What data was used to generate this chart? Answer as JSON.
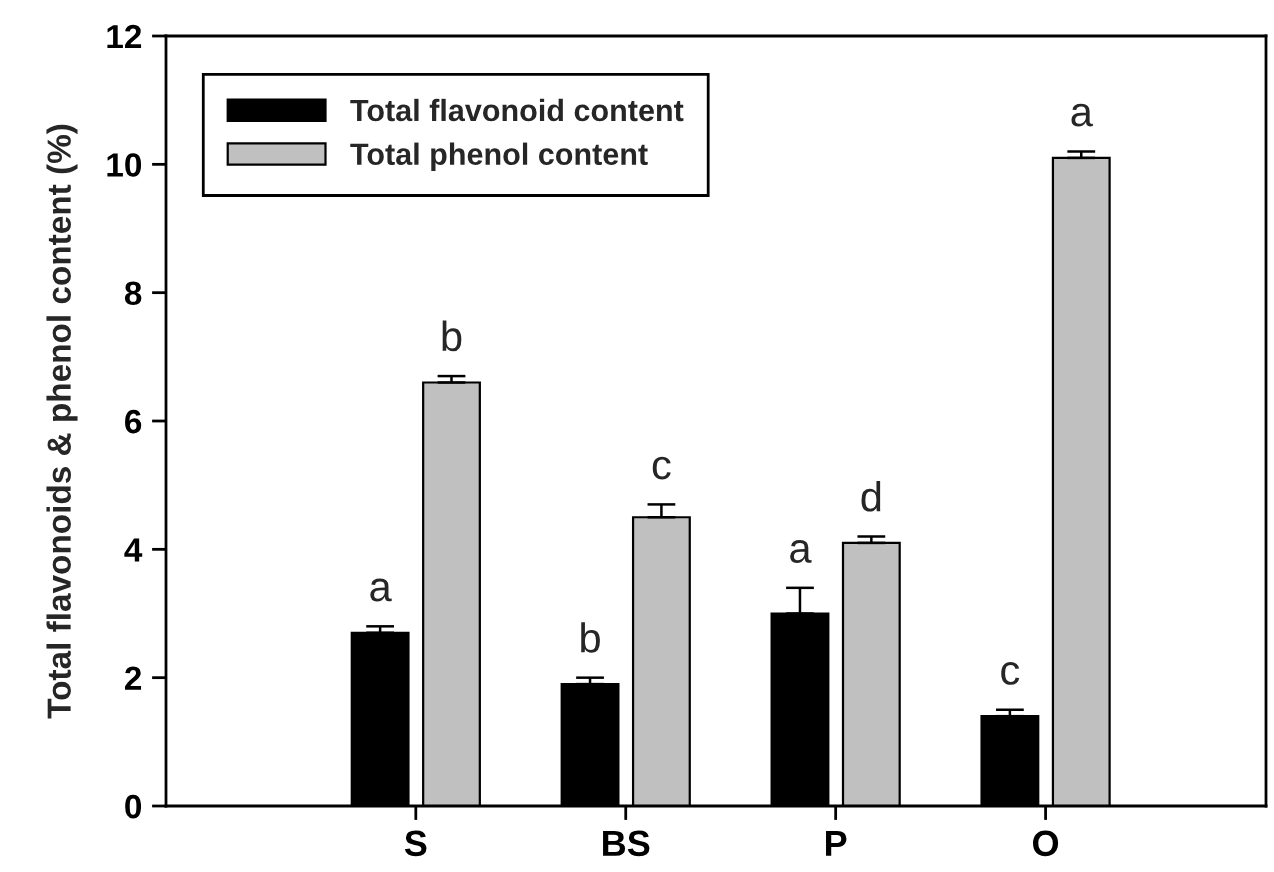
{
  "chart_data": {
    "type": "bar",
    "ylabel": "Total flavonoids & phenol content (%)",
    "categories": [
      "S",
      "BS",
      "P",
      "O"
    ],
    "series": [
      {
        "name": "Total flavonoid content",
        "color": "#000000",
        "values": [
          2.7,
          1.9,
          3.0,
          1.4
        ],
        "errors": [
          [
            2.7,
            2.8
          ],
          [
            1.9,
            2.0
          ],
          [
            3.0,
            3.4
          ],
          [
            1.4,
            1.5
          ]
        ],
        "value_labels": [
          "a",
          "b",
          "a",
          "c"
        ]
      },
      {
        "name": "Total phenol content",
        "color": "#c0c0c0",
        "values": [
          6.6,
          4.5,
          4.1,
          10.1
        ],
        "errors": [
          [
            6.6,
            6.7
          ],
          [
            4.5,
            4.7
          ],
          [
            4.1,
            4.2
          ],
          [
            10.1,
            10.2
          ]
        ],
        "value_labels": [
          "b",
          "c",
          "d",
          "a"
        ]
      }
    ],
    "ylim": [
      0,
      12
    ],
    "yticks": [
      0,
      2,
      4,
      6,
      8,
      10,
      12
    ],
    "grid": false,
    "legend": "top left"
  }
}
